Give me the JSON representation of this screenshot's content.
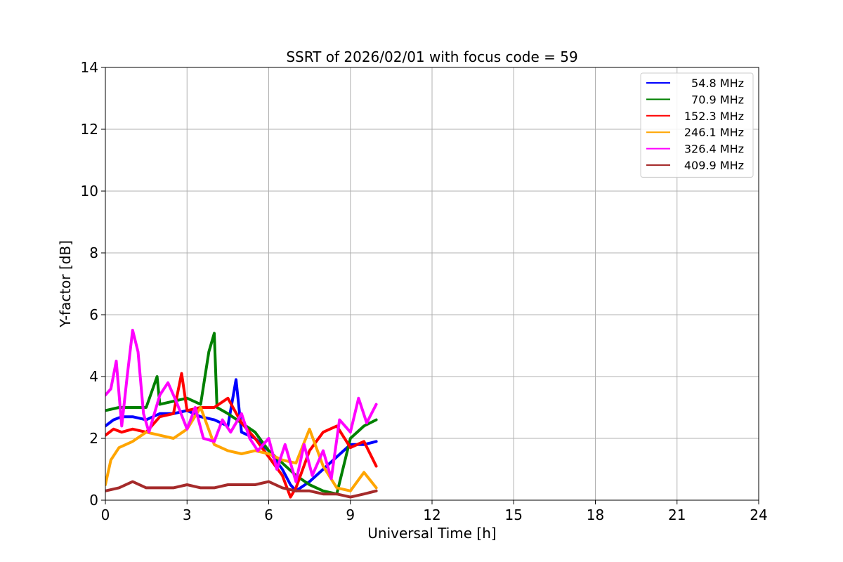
{
  "chart_data": {
    "type": "line",
    "title": "SSRT of 2026/02/01 with focus code = 59",
    "xlabel": "Universal Time [h]",
    "ylabel": "Y-factor [dB]",
    "xlim": [
      0,
      24
    ],
    "ylim": [
      0,
      14
    ],
    "xticks": [
      0,
      3,
      6,
      9,
      12,
      15,
      18,
      21,
      24
    ],
    "yticks": [
      0,
      2,
      4,
      6,
      8,
      10,
      12,
      14
    ],
    "grid": true,
    "legend_position": "top-right",
    "series": [
      {
        "name": "54.8 MHz",
        "color": "#0000ff",
        "x": [
          0,
          0.3,
          0.6,
          1.0,
          1.5,
          2.0,
          2.5,
          3.0,
          3.5,
          4.0,
          4.5,
          4.8,
          5.0,
          5.5,
          6.0,
          6.5,
          6.8,
          7.0,
          7.5,
          8.0,
          8.5,
          9.0,
          9.5,
          9.95
        ],
        "y": [
          2.4,
          2.6,
          2.7,
          2.7,
          2.6,
          2.8,
          2.8,
          2.9,
          2.7,
          2.6,
          2.4,
          3.9,
          2.2,
          2.0,
          1.6,
          1.0,
          0.5,
          0.3,
          0.6,
          1.0,
          1.4,
          1.8,
          1.8,
          1.9
        ]
      },
      {
        "name": "70.9 MHz",
        "color": "#008000",
        "x": [
          0,
          0.5,
          1.0,
          1.5,
          1.9,
          2.0,
          2.5,
          3.0,
          3.5,
          3.8,
          4.0,
          4.1,
          4.5,
          5.0,
          5.5,
          6.0,
          6.5,
          7.0,
          7.5,
          8.0,
          8.5,
          9.0,
          9.5,
          9.95
        ],
        "y": [
          2.9,
          3.0,
          3.0,
          3.0,
          4.0,
          3.1,
          3.2,
          3.3,
          3.1,
          4.8,
          5.4,
          3.0,
          2.8,
          2.5,
          2.2,
          1.6,
          1.2,
          0.8,
          0.5,
          0.3,
          0.2,
          2.0,
          2.4,
          2.6
        ]
      },
      {
        "name": "152.3 MHz",
        "color": "#ff0000",
        "x": [
          0,
          0.3,
          0.6,
          1.0,
          1.5,
          2.0,
          2.5,
          2.8,
          3.0,
          3.5,
          4.0,
          4.5,
          5.0,
          5.5,
          6.0,
          6.5,
          6.8,
          7.0,
          7.5,
          8.0,
          8.5,
          9.0,
          9.5,
          9.95
        ],
        "y": [
          2.1,
          2.3,
          2.2,
          2.3,
          2.2,
          2.7,
          2.8,
          4.1,
          2.9,
          3.0,
          3.0,
          3.3,
          2.5,
          2.0,
          1.4,
          0.8,
          0.1,
          0.4,
          1.6,
          2.2,
          2.4,
          1.7,
          1.9,
          1.1
        ]
      },
      {
        "name": "246.1 MHz",
        "color": "#ffa500",
        "x": [
          0,
          0.2,
          0.5,
          1.0,
          1.5,
          2.0,
          2.5,
          3.0,
          3.5,
          4.0,
          4.5,
          5.0,
          5.5,
          6.0,
          6.5,
          7.0,
          7.5,
          8.0,
          8.5,
          9.0,
          9.5,
          9.95
        ],
        "y": [
          0.5,
          1.3,
          1.7,
          1.9,
          2.2,
          2.1,
          2.0,
          2.3,
          3.0,
          1.8,
          1.6,
          1.5,
          1.6,
          1.5,
          1.3,
          1.2,
          2.3,
          1.1,
          0.4,
          0.3,
          0.9,
          0.4
        ]
      },
      {
        "name": "326.4 MHz",
        "color": "#ff00ff",
        "x": [
          0,
          0.2,
          0.4,
          0.6,
          0.8,
          1.0,
          1.2,
          1.4,
          1.6,
          2.0,
          2.3,
          2.6,
          3.0,
          3.3,
          3.6,
          4.0,
          4.3,
          4.6,
          5.0,
          5.3,
          5.6,
          6.0,
          6.3,
          6.6,
          7.0,
          7.3,
          7.6,
          8.0,
          8.3,
          8.6,
          9.0,
          9.3,
          9.6,
          9.95
        ],
        "y": [
          3.4,
          3.6,
          4.5,
          2.4,
          4.0,
          5.5,
          4.8,
          2.8,
          2.2,
          3.4,
          3.8,
          3.2,
          2.3,
          3.0,
          2.0,
          1.9,
          2.6,
          2.2,
          2.8,
          2.0,
          1.6,
          2.0,
          1.0,
          1.8,
          0.6,
          1.8,
          0.8,
          1.6,
          0.7,
          2.6,
          2.2,
          3.3,
          2.5,
          3.1
        ]
      },
      {
        "name": "409.9 MHz",
        "color": "#a52a2a",
        "x": [
          0,
          0.5,
          1.0,
          1.5,
          2.0,
          2.5,
          3.0,
          3.5,
          4.0,
          4.5,
          5.0,
          5.5,
          6.0,
          6.5,
          7.0,
          7.5,
          8.0,
          8.5,
          9.0,
          9.5,
          9.95
        ],
        "y": [
          0.3,
          0.4,
          0.6,
          0.4,
          0.4,
          0.4,
          0.5,
          0.4,
          0.4,
          0.5,
          0.5,
          0.5,
          0.6,
          0.4,
          0.3,
          0.3,
          0.2,
          0.2,
          0.1,
          0.2,
          0.3
        ]
      }
    ]
  }
}
